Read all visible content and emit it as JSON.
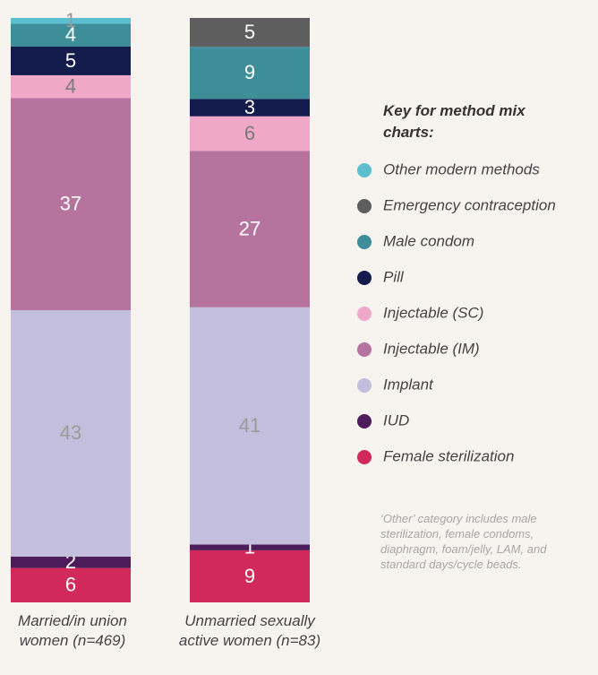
{
  "chart_data": {
    "type": "stacked_bar",
    "categories": [
      "Married/in union women (n=469)",
      "Unmarried sexually active women (n=83)"
    ],
    "series": [
      {
        "name": "Female sterilization",
        "color": "#d12a5a",
        "label_color": "#ffffff",
        "values": [
          6,
          9
        ]
      },
      {
        "name": "IUD",
        "color": "#4d1c5a",
        "label_color": "#ffffff",
        "values": [
          2,
          1
        ]
      },
      {
        "name": "Implant",
        "color": "#c3bedc",
        "label_color": "#9a9a9a",
        "values": [
          43,
          41
        ]
      },
      {
        "name": "Injectable (IM)",
        "color": "#b5739d",
        "label_color": "#ffffff",
        "values": [
          37,
          27
        ]
      },
      {
        "name": "Injectable (SC)",
        "color": "#f0a8c8",
        "label_color": "#7a7a7a",
        "values": [
          4,
          6
        ]
      },
      {
        "name": "Pill",
        "color": "#141b4d",
        "label_color": "#ffffff",
        "values": [
          5,
          3
        ]
      },
      {
        "name": "Male condom",
        "color": "#3e8e9a",
        "label_color": "#ffffff",
        "values": [
          4,
          9
        ]
      },
      {
        "name": "Emergency contraception",
        "color": "#5e5e5e",
        "label_color": "#ffffff",
        "values": [
          null,
          5
        ]
      },
      {
        "name": "Other modern methods",
        "color": "#5bbfcf",
        "label_color": "#9a9a9a",
        "values": [
          1,
          null
        ]
      }
    ],
    "legend_title": "Key for method mix charts:",
    "note": "‘Other’ category includes male sterilization,  female condoms, diaphragm, foam/jelly, LAM,  and standard days/cycle beads."
  }
}
